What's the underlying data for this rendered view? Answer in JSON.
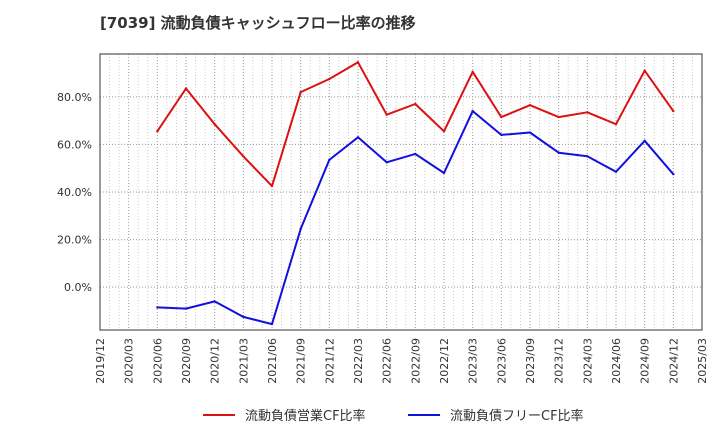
{
  "chart_data": {
    "type": "line",
    "title": "[7039]  流動負債キャッシュフロー比率の推移",
    "xlabel": "",
    "ylabel": "",
    "ylim": [
      -18,
      98
    ],
    "yticks": [
      0,
      20,
      40,
      60,
      80
    ],
    "ytick_labels": [
      "0.0%",
      "20.0%",
      "40.0%",
      "60.0%",
      "80.0%"
    ],
    "x_tick_labels": [
      "2019/12",
      "2020/03",
      "2020/06",
      "2020/09",
      "2020/12",
      "2021/03",
      "2021/06",
      "2021/09",
      "2021/12",
      "2022/03",
      "2022/06",
      "2022/09",
      "2022/12",
      "2023/03",
      "2023/06",
      "2023/09",
      "2023/12",
      "2024/03",
      "2024/06",
      "2024/09",
      "2024/12",
      "2025/03"
    ],
    "grid": true,
    "legend_position": "bottom",
    "series": [
      {
        "name": "流動負債営業CF比率",
        "color": "#dd1111",
        "x": [
          "2020/06",
          "2020/09",
          "2020/12",
          "2021/03",
          "2021/06",
          "2021/09",
          "2021/12",
          "2022/03",
          "2022/06",
          "2022/09",
          "2022/12",
          "2023/03",
          "2023/06",
          "2023/09",
          "2023/12",
          "2024/03",
          "2024/06",
          "2024/09",
          "2024/12"
        ],
        "values": [
          65.5,
          83.5,
          68.5,
          55.0,
          42.5,
          82.0,
          87.5,
          94.5,
          72.5,
          77.0,
          65.5,
          90.5,
          71.5,
          76.5,
          71.5,
          73.5,
          68.5,
          91.0,
          74.0
        ]
      },
      {
        "name": "流動負債フリーCF比率",
        "color": "#1111dd",
        "x": [
          "2020/06",
          "2020/09",
          "2020/12",
          "2021/03",
          "2021/06",
          "2021/09",
          "2021/12",
          "2022/03",
          "2022/06",
          "2022/09",
          "2022/12",
          "2023/03",
          "2023/06",
          "2023/09",
          "2023/12",
          "2024/03",
          "2024/06",
          "2024/09",
          "2024/12"
        ],
        "values": [
          -8.5,
          -9.0,
          -6.0,
          -12.5,
          -15.5,
          24.5,
          53.5,
          63.0,
          52.5,
          56.0,
          48.0,
          74.0,
          64.0,
          65.0,
          56.5,
          55.0,
          48.5,
          61.5,
          47.5
        ]
      }
    ]
  }
}
